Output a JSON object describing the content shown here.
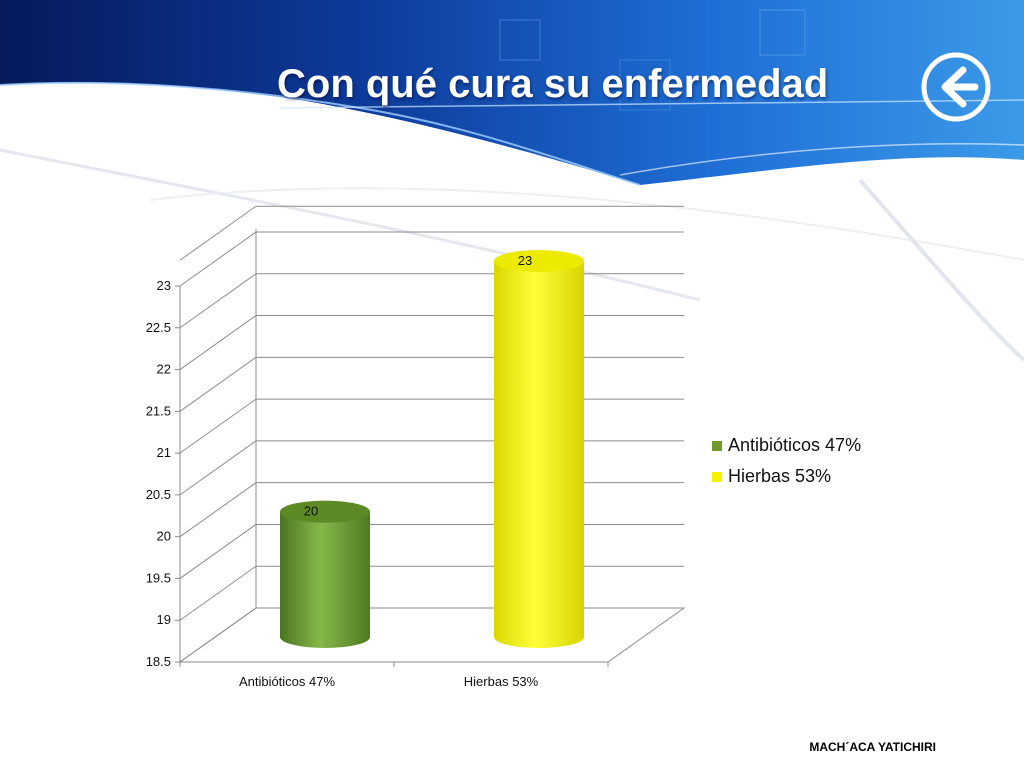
{
  "slide": {
    "title": "Con qué cura su enfermedad",
    "footer": "MACH´ACA YATICHIRI"
  },
  "icons": {
    "back": "arrow-left-circle-icon"
  },
  "colors": {
    "antibioticos": "#6f9a2e",
    "hierbas": "#f4f200",
    "header_dark": "#0a2a7a",
    "header_light": "#2f86e0"
  },
  "chart_data": {
    "type": "bar",
    "style": "3d-cylinder",
    "title": "",
    "xlabel": "",
    "ylabel": "",
    "categories": [
      "Antibióticos 47%",
      "Hierbas 53%"
    ],
    "values": [
      20,
      23
    ],
    "data_labels": [
      "20",
      "23"
    ],
    "ylim": [
      18.5,
      23
    ],
    "yticks": [
      "18.5",
      "19",
      "19.5",
      "20",
      "20.5",
      "21",
      "21.5",
      "22",
      "22.5",
      "23"
    ],
    "grid": true,
    "legend": {
      "position": "right",
      "entries": [
        "Antibióticos 47%",
        "Hierbas 53%"
      ]
    }
  }
}
